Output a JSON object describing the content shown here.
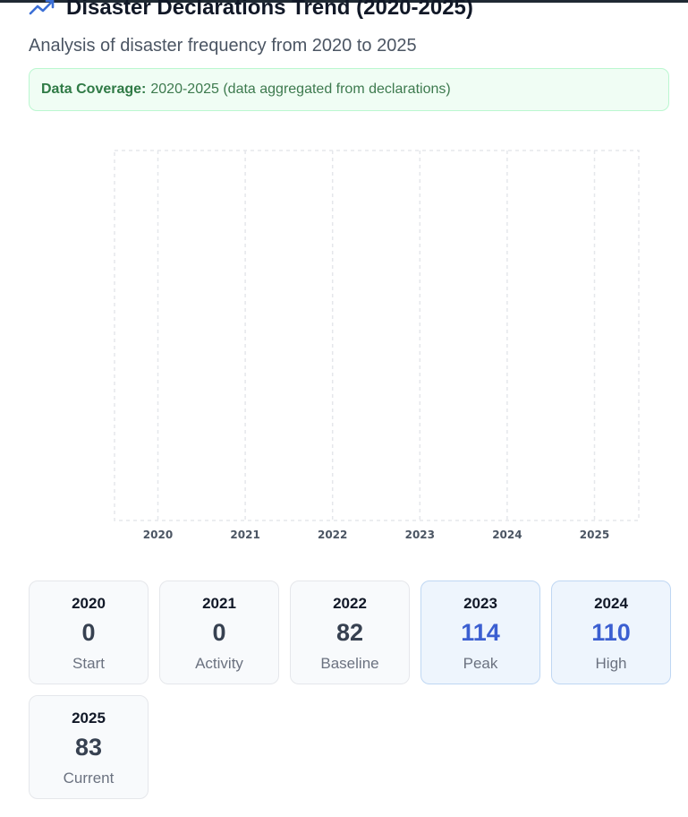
{
  "header": {
    "title": "Disaster Declarations Trend (2020-2025)",
    "subtitle": "Analysis of disaster frequency from 2020 to 2025"
  },
  "coverage": {
    "label": "Data Coverage:",
    "text": "2020-2025 (data aggregated from declarations)"
  },
  "chart_data": {
    "type": "line",
    "x": [
      "2020",
      "2021",
      "2022",
      "2023",
      "2024",
      "2025"
    ],
    "series": [],
    "grid": true
  },
  "cards": [
    {
      "year": "2020",
      "value": "0",
      "label": "Start",
      "highlight": false
    },
    {
      "year": "2021",
      "value": "0",
      "label": "Activity",
      "highlight": false
    },
    {
      "year": "2022",
      "value": "82",
      "label": "Baseline",
      "highlight": false
    },
    {
      "year": "2023",
      "value": "114",
      "label": "Peak",
      "highlight": true
    },
    {
      "year": "2024",
      "value": "110",
      "label": "High",
      "highlight": true
    },
    {
      "year": "2025",
      "value": "83",
      "label": "Current",
      "highlight": false
    }
  ],
  "colors": {
    "accent": "#3b5fd1",
    "coverage_bg": "#f0fdf4",
    "coverage_border": "#bbf7d0",
    "grid": "#e5e7eb"
  },
  "icons": {
    "header": "trending-up-icon"
  }
}
